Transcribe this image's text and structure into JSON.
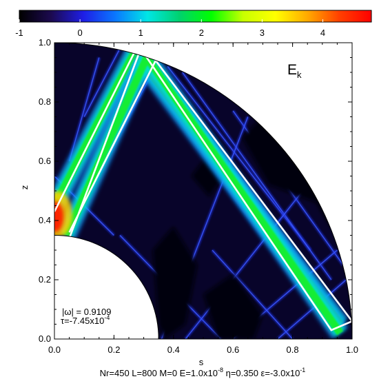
{
  "chart_data": {
    "type": "heatmap",
    "title": "",
    "panel_label": "E",
    "panel_label_sub": "k",
    "xlabel": "s",
    "ylabel": "z",
    "xlim": [
      0.0,
      1.0
    ],
    "ylim": [
      0.0,
      1.0
    ],
    "x_ticks": [
      "0.0",
      "0.2",
      "0.4",
      "0.6",
      "0.8",
      "1.0"
    ],
    "y_ticks": [
      "0.0",
      "0.2",
      "0.4",
      "0.6",
      "0.8",
      "1.0"
    ],
    "colorbar": {
      "min": -1,
      "max": 4.8,
      "ticks": [
        "-1",
        "0",
        "1",
        "2",
        "3",
        "4"
      ],
      "colors": [
        "#000000",
        "#1c0a50",
        "#1e1ee6",
        "#0a78ff",
        "#00e6e6",
        "#00d26e",
        "#00ff00",
        "#c8ff00",
        "#ffff00",
        "#ffaa00",
        "#ff4000",
        "#ff0000"
      ]
    },
    "inner_radius": 0.35,
    "outer_radius": 1.0,
    "annotation_omega": "|ω| = 0.9109",
    "annotation_tau_prefix": "τ=-7.45x10",
    "annotation_tau_exp": "-4",
    "params": {
      "p1": "Nr=450 L=800 M=0 E=1.0x10",
      "p1_exp": "-8",
      "p2": " η=0.350 ε=-3.0x10",
      "p2_exp": "-1"
    },
    "attractor_white": [
      [
        [
          0.05,
          0.34
        ],
        [
          0.29,
          0.98
        ],
        [
          0.93,
          0.03
        ],
        [
          1.0,
          0.06
        ],
        [
          0.34,
          0.94
        ],
        [
          0.05,
          0.36
        ]
      ],
      [
        [
          0.0,
          0.43
        ],
        [
          0.27,
          0.97
        ]
      ]
    ],
    "ray_green_bands": [
      [
        [
          0.0,
          0.45
        ],
        [
          0.27,
          0.97
        ],
        [
          0.96,
          0.05
        ]
      ],
      [
        [
          0.04,
          0.35
        ],
        [
          0.31,
          0.95
        ],
        [
          0.96,
          0.02
        ]
      ]
    ],
    "ray_blue_lines": [
      [
        [
          0.05,
          0.6
        ],
        [
          0.15,
          0.95
        ]
      ],
      [
        [
          0.1,
          0.75
        ],
        [
          0.22,
          0.98
        ]
      ],
      [
        [
          0.38,
          0.92
        ],
        [
          0.86,
          0.3
        ]
      ],
      [
        [
          0.43,
          0.9
        ],
        [
          0.93,
          0.2
        ]
      ],
      [
        [
          0.6,
          0.77
        ],
        [
          0.97,
          0.25
        ]
      ],
      [
        [
          0.36,
          0.0
        ],
        [
          0.65,
          0.75
        ]
      ],
      [
        [
          0.22,
          0.35
        ],
        [
          0.56,
          0.0
        ]
      ],
      [
        [
          0.12,
          0.5
        ],
        [
          0.35,
          0.94
        ]
      ],
      [
        [
          0.6,
          0.0
        ],
        [
          0.95,
          0.3
        ]
      ],
      [
        [
          0.75,
          0.0
        ],
        [
          0.98,
          0.2
        ]
      ],
      [
        [
          0.53,
          0.3
        ],
        [
          0.8,
          0.0
        ]
      ],
      [
        [
          0.44,
          0.0
        ],
        [
          0.85,
          0.52
        ]
      ],
      [
        [
          0.0,
          0.55
        ],
        [
          0.2,
          0.35
        ]
      ]
    ],
    "dark_regions": [
      [
        [
          0.37,
          0.0
        ],
        [
          0.44,
          0.05
        ],
        [
          0.48,
          0.25
        ],
        [
          0.4,
          0.38
        ],
        [
          0.33,
          0.3
        ],
        [
          0.35,
          0.05
        ]
      ],
      [
        [
          0.55,
          0.0
        ],
        [
          0.67,
          0.0
        ],
        [
          0.7,
          0.08
        ],
        [
          0.6,
          0.22
        ],
        [
          0.5,
          0.15
        ]
      ],
      [
        [
          0.8,
          0.86
        ],
        [
          0.63,
          0.68
        ],
        [
          0.72,
          0.52
        ],
        [
          0.88,
          0.46
        ],
        [
          0.93,
          0.37
        ]
      ],
      [
        [
          0.46,
          0.55
        ],
        [
          0.52,
          0.63
        ],
        [
          0.57,
          0.55
        ],
        [
          0.52,
          0.48
        ]
      ]
    ]
  }
}
